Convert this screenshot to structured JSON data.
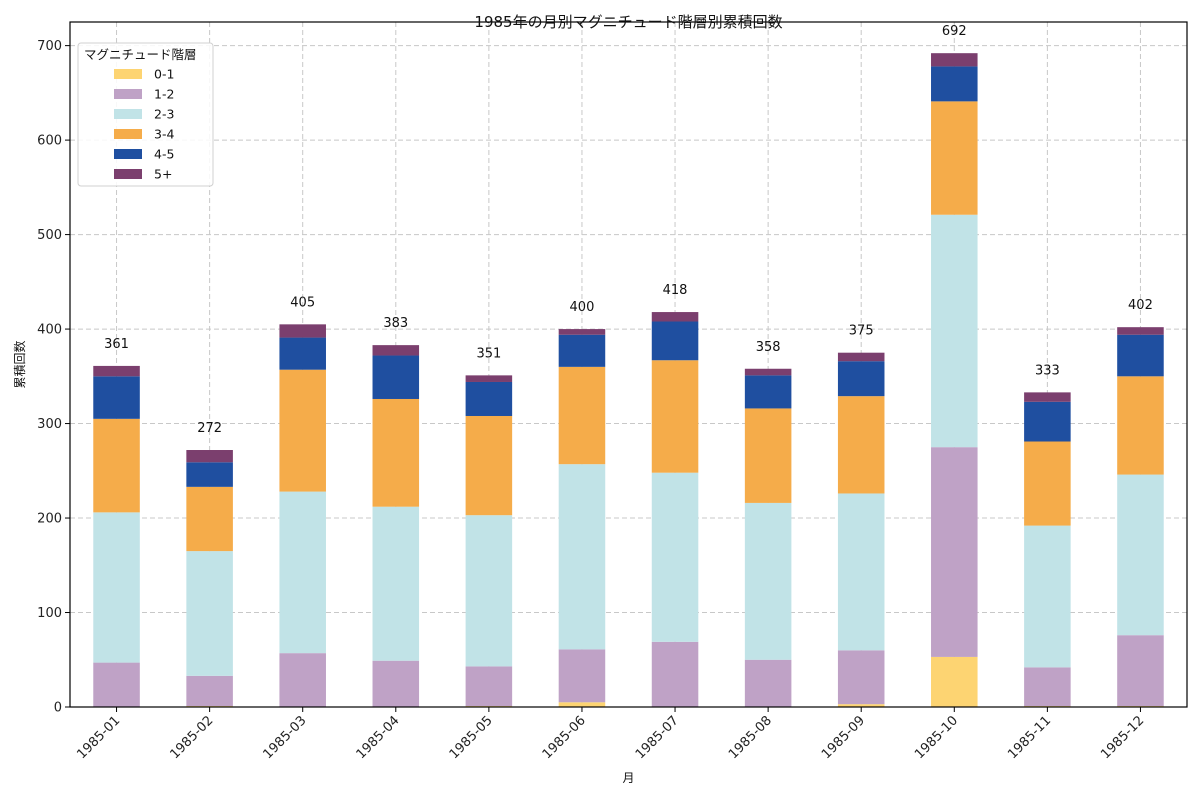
{
  "chart_data": {
    "type": "bar",
    "stacked": true,
    "title": "1985年の月別マグニチュード階層別累積回数",
    "xlabel": "月",
    "ylabel": "累積回数",
    "ylim": [
      0,
      725
    ],
    "yticks": [
      0,
      100,
      200,
      300,
      400,
      500,
      600,
      700
    ],
    "grid": true,
    "legend": {
      "title": "マグニチュード階層",
      "placement": "top-left"
    },
    "categories": [
      "1985-01",
      "1985-02",
      "1985-03",
      "1985-04",
      "1985-05",
      "1985-06",
      "1985-07",
      "1985-08",
      "1985-09",
      "1985-10",
      "1985-11",
      "1985-12"
    ],
    "series": [
      {
        "name": "0-1",
        "color": "#fdd472",
        "values": [
          0,
          1,
          0,
          0,
          1,
          5,
          0,
          0,
          3,
          53,
          1,
          1
        ]
      },
      {
        "name": "1-2",
        "color": "#bfa2c6",
        "values": [
          47,
          32,
          57,
          49,
          42,
          56,
          69,
          50,
          57,
          222,
          41,
          75
        ]
      },
      {
        "name": "2-3",
        "color": "#c1e3e7",
        "values": [
          159,
          132,
          171,
          163,
          160,
          196,
          179,
          166,
          166,
          246,
          150,
          170
        ]
      },
      {
        "name": "3-4",
        "color": "#f5ac4a",
        "values": [
          99,
          68,
          129,
          114,
          105,
          103,
          119,
          100,
          103,
          120,
          89,
          104
        ]
      },
      {
        "name": "4-5",
        "color": "#1f4fa0",
        "values": [
          45,
          26,
          34,
          46,
          36,
          34,
          41,
          35,
          37,
          37,
          42,
          44
        ]
      },
      {
        "name": "5+",
        "color": "#7b3f6e",
        "values": [
          11,
          13,
          14,
          11,
          7,
          6,
          10,
          7,
          9,
          14,
          10,
          8
        ]
      }
    ],
    "totals": [
      361,
      272,
      405,
      383,
      351,
      400,
      418,
      358,
      375,
      692,
      333,
      402
    ]
  }
}
